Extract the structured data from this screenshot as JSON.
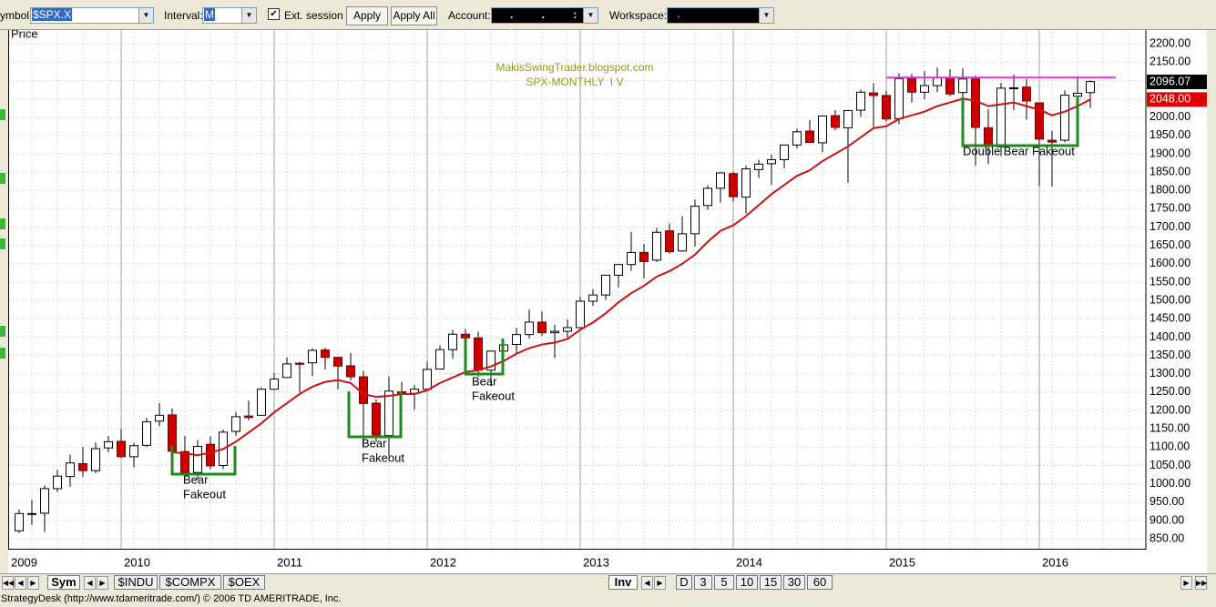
{
  "toolbar": {
    "symbol_label": "ymbol:",
    "symbol": "$SPX.X",
    "interval_label": "Interval:",
    "interval": "M",
    "ext_session": "Ext. session",
    "apply": "Apply",
    "apply_all": "Apply All",
    "account_label": "Account:",
    "account": ". . : .",
    "workspace_label": "Workspace:",
    "workspace": "."
  },
  "chart_data": {
    "type": "candlestick",
    "title": "MakisSwingTrader.blogspot.com",
    "subtitle": "SPX-MONTHLY  I V",
    "y_label": "Price",
    "categories": [
      "2009",
      null,
      null,
      null,
      null,
      null,
      null,
      null,
      "2010",
      null,
      null,
      null,
      null,
      null,
      null,
      null,
      null,
      null,
      null,
      null,
      "2011",
      null,
      null,
      null,
      null,
      null,
      null,
      null,
      null,
      null,
      null,
      null,
      "2012",
      null,
      null,
      null,
      null,
      null,
      null,
      null,
      null,
      null,
      null,
      null,
      "2013",
      null,
      null,
      null,
      null,
      null,
      null,
      null,
      null,
      null,
      null,
      null,
      "2014",
      null,
      null,
      null,
      null,
      null,
      null,
      null,
      null,
      null,
      null,
      null,
      "2015",
      null,
      null,
      null,
      null,
      null,
      null,
      null,
      null,
      null,
      null,
      null,
      "2016",
      null,
      null,
      null,
      null
    ],
    "open": [
      872,
      919,
      920,
      987,
      1020,
      1055,
      1036,
      1098,
      1116,
      1074,
      1105,
      1171,
      1188,
      1088,
      1031,
      1108,
      1050,
      1143,
      1185,
      1187,
      1258,
      1290,
      1329,
      1330,
      1365,
      1345,
      1322,
      1292,
      1220,
      1132,
      1251,
      1247,
      1258,
      1313,
      1366,
      1408,
      1398,
      1310,
      1362,
      1380,
      1407,
      1441,
      1412,
      1416,
      1426,
      1498,
      1515,
      1569,
      1598,
      1631,
      1610,
      1690,
      1635,
      1682,
      1759,
      1806,
      1846,
      1782,
      1857,
      1873,
      1884,
      1924,
      1962,
      1930,
      2004,
      1971,
      2019,
      2066,
      2059,
      1996,
      2105,
      2068,
      2086,
      2108,
      2067,
      2104,
      1971,
      1919,
      2080,
      2082,
      2039,
      1937,
      1937,
      2057,
      2067
    ],
    "high": [
      930,
      956,
      996,
      1039,
      1080,
      1101,
      1113,
      1130,
      1150,
      1112,
      1180,
      1220,
      1206,
      1131,
      1120,
      1130,
      1148,
      1196,
      1227,
      1263,
      1302,
      1344,
      1333,
      1370,
      1371,
      1345,
      1357,
      1308,
      1230,
      1293,
      1278,
      1270,
      1333,
      1378,
      1420,
      1422,
      1415,
      1363,
      1392,
      1426,
      1475,
      1470,
      1434,
      1448,
      1510,
      1531,
      1570,
      1598,
      1687,
      1654,
      1698,
      1710,
      1730,
      1775,
      1814,
      1849,
      1851,
      1867,
      1884,
      1898,
      1924,
      1968,
      1992,
      2005,
      2019,
      2018,
      2075,
      2093,
      2072,
      2119,
      2118,
      2126,
      2135,
      2130,
      2133,
      2113,
      2021,
      2094,
      2116,
      2104,
      2039,
      1963,
      2073,
      2112,
      2100
    ],
    "low": [
      866,
      888,
      869,
      978,
      992,
      1020,
      1029,
      1086,
      1071,
      1045,
      1101,
      1157,
      1040,
      1029,
      1011,
      1040,
      1040,
      1131,
      1173,
      1187,
      1257,
      1289,
      1249,
      1294,
      1312,
      1258,
      1282,
      1101,
      1115,
      1075,
      1159,
      1202,
      1258,
      1312,
      1341,
      1358,
      1292,
      1267,
      1325,
      1354,
      1397,
      1403,
      1343,
      1399,
      1426,
      1485,
      1502,
      1536,
      1581,
      1560,
      1605,
      1628,
      1633,
      1647,
      1747,
      1767,
      1770,
      1737,
      1834,
      1815,
      1860,
      1915,
      1930,
      1905,
      1964,
      1821,
      2001,
      1973,
      1988,
      1981,
      2040,
      2048,
      2068,
      2057,
      2045,
      1867,
      1872,
      1894,
      2019,
      1993,
      1812,
      1810,
      1931,
      2034,
      2025
    ],
    "close": [
      919,
      919,
      987,
      1021,
      1057,
      1036,
      1096,
      1115,
      1074,
      1104,
      1169,
      1187,
      1089,
      1031,
      1102,
      1049,
      1141,
      1183,
      1181,
      1258,
      1286,
      1327,
      1326,
      1364,
      1345,
      1321,
      1292,
      1219,
      1131,
      1253,
      1247,
      1258,
      1312,
      1366,
      1408,
      1398,
      1310,
      1362,
      1379,
      1407,
      1441,
      1412,
      1416,
      1426,
      1498,
      1515,
      1569,
      1598,
      1631,
      1606,
      1686,
      1633,
      1682,
      1757,
      1806,
      1848,
      1783,
      1859,
      1872,
      1884,
      1924,
      1960,
      1931,
      2003,
      1972,
      2018,
      2068,
      2059,
      1995,
      2105,
      2068,
      2086,
      2107,
      2063,
      2104,
      1972,
      1920,
      2079,
      2080,
      2044,
      1940,
      1932,
      2060,
      2065,
      2097
    ],
    "up_color": "#ffffff",
    "down_color": "#cc0000",
    "moving_average": {
      "color": "#cc1111",
      "values": [
        null,
        null,
        null,
        null,
        null,
        null,
        null,
        null,
        null,
        null,
        null,
        null,
        1086,
        1083,
        1078,
        1085,
        1095,
        1115,
        1140,
        1165,
        1195,
        1220,
        1245,
        1265,
        1278,
        1283,
        1275,
        1245,
        1237,
        1240,
        1245,
        1245,
        1255,
        1275,
        1290,
        1305,
        1310,
        1320,
        1335,
        1355,
        1370,
        1380,
        1385,
        1395,
        1420,
        1440,
        1465,
        1495,
        1520,
        1540,
        1565,
        1580,
        1600,
        1625,
        1660,
        1690,
        1705,
        1730,
        1760,
        1790,
        1815,
        1840,
        1855,
        1880,
        1900,
        1920,
        1945,
        1970,
        1975,
        1995,
        2005,
        2015,
        2030,
        2040,
        2050,
        2045,
        2030,
        2035,
        2040,
        2030,
        2020,
        2005,
        2015,
        2030,
        2048
      ]
    },
    "resistance": {
      "value": 2108,
      "color": "#dd33dd"
    },
    "box_color": "#1e8a1e",
    "annotations": [
      {
        "lines": [
          "Bear",
          "Fakeout"
        ]
      },
      {
        "lines": [
          "Bear",
          "Fakeout"
        ]
      },
      {
        "lines": [
          "Bear",
          "Fakeout"
        ]
      },
      {
        "lines": [
          "Double Bear Fakeout"
        ]
      }
    ],
    "price_labels": [
      {
        "value": 2096.07,
        "label": "2096.07",
        "color": "#000000"
      },
      {
        "value": 2048,
        "label": "2048.00",
        "color": "#e00000"
      }
    ],
    "ylim": [
      823,
      2240
    ],
    "yticks": [
      {
        "value": 850,
        "label": "850.00"
      },
      {
        "value": 900,
        "label": "900.00"
      },
      {
        "value": 950,
        "label": "950.00"
      },
      {
        "value": 1000,
        "label": "1000.00"
      },
      {
        "value": 1050,
        "label": "1050.00"
      },
      {
        "value": 1100,
        "label": "1100.00"
      },
      {
        "value": 1150,
        "label": "1150.00"
      },
      {
        "value": 1200,
        "label": "1200.00"
      },
      {
        "value": 1250,
        "label": "1250.00"
      },
      {
        "value": 1300,
        "label": "1300.00"
      },
      {
        "value": 1350,
        "label": "1350.00"
      },
      {
        "value": 1400,
        "label": "1400.00"
      },
      {
        "value": 1450,
        "label": "1450.00"
      },
      {
        "value": 1500,
        "label": "1500.00"
      },
      {
        "value": 1550,
        "label": "1550.00"
      },
      {
        "value": 1600,
        "label": "1600.00"
      },
      {
        "value": 1650,
        "label": "1650.00"
      },
      {
        "value": 1700,
        "label": "1700.00"
      },
      {
        "value": 1750,
        "label": "1750.00"
      },
      {
        "value": 1800,
        "label": "1800.00"
      },
      {
        "value": 1850,
        "label": "1850.00"
      },
      {
        "value": 1900,
        "label": "1900.00"
      },
      {
        "value": 1950,
        "label": "1950.00"
      },
      {
        "value": 2000,
        "label": "2000.00"
      },
      {
        "value": 2050,
        "label": "2050.00"
      },
      {
        "value": 2100,
        "label": "2100.00"
      },
      {
        "value": 2150,
        "label": "2150.00"
      },
      {
        "value": 2200,
        "label": "2200.00"
      }
    ],
    "grid": true
  },
  "bottom_bar": {
    "left_tabs": [
      "Sym",
      "$INDU",
      "$COMPX",
      "$OEX"
    ],
    "right_tabs": [
      "Inv",
      "D",
      "3",
      "5",
      "10",
      "15",
      "30",
      "60"
    ]
  },
  "status": "StrategyDesk (http://www.tdameritrade.com/) © 2006 TD AMERITRADE, Inc."
}
